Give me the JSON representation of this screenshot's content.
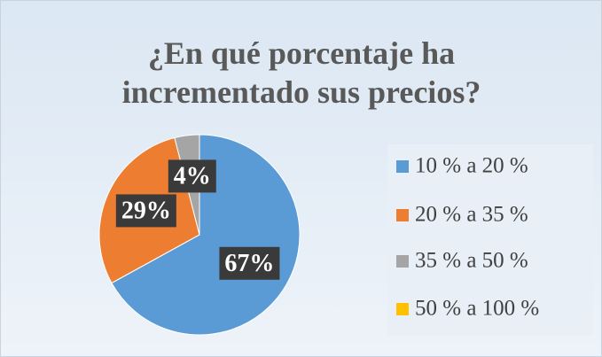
{
  "chart_data": {
    "type": "pie",
    "title": "¿En qué porcentaje ha incrementado sus precios?",
    "categories": [
      "10 % a 20 %",
      "20 % a 35 %",
      "35 % a 50 %",
      "50 % a 100 %"
    ],
    "values": [
      67,
      29,
      4,
      0
    ],
    "value_labels": [
      "67%",
      "29%",
      "4%",
      null
    ],
    "colors": [
      "#5b9bd5",
      "#ed7d31",
      "#a5a5a5",
      "#ffc000"
    ],
    "legend": "right"
  }
}
